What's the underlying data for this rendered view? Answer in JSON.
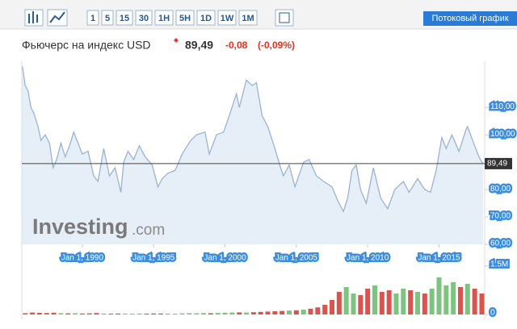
{
  "toolbar": {
    "intervals": [
      "1",
      "5",
      "15",
      "30",
      "1H",
      "5H",
      "1D",
      "1W",
      "1M"
    ],
    "streaming": "Потоковый график"
  },
  "header": {
    "name": "Фьючерс на индекс USD",
    "price": "89,49",
    "change": "-0,08",
    "change_pct": "(-0,09%)"
  },
  "chart_data": {
    "type": "area",
    "watermark": "Investing",
    "watermark_suffix": ".com",
    "x": [
      1985.8,
      1986.0,
      1986.2,
      1986.4,
      1986.6,
      1986.9,
      1987.1,
      1987.4,
      1987.7,
      1987.95,
      1988.2,
      1988.5,
      1988.8,
      1989.1,
      1989.4,
      1989.7,
      1990.0,
      1990.4,
      1990.8,
      1991.1,
      1991.5,
      1991.9,
      1992.3,
      1992.7,
      1992.9,
      1993.2,
      1993.6,
      1994.0,
      1994.4,
      1994.9,
      1995.3,
      1995.6,
      1996.0,
      1996.5,
      1997.0,
      1997.6,
      1998.0,
      1998.6,
      1998.9,
      1999.4,
      1999.9,
      2000.3,
      2000.8,
      2001.0,
      2001.5,
      2001.9,
      2002.2,
      2002.6,
      2003.0,
      2003.5,
      2003.9,
      2004.1,
      2004.5,
      2004.9,
      2005.5,
      2005.9,
      2006.4,
      2006.9,
      2007.5,
      2007.9,
      2008.3,
      2008.6,
      2008.9,
      2009.2,
      2009.5,
      2009.9,
      2010.4,
      2010.9,
      2011.4,
      2011.9,
      2012.5,
      2012.9,
      2013.5,
      2014.0,
      2014.4,
      2014.8,
      2015.2,
      2015.5,
      2015.9,
      2016.4,
      2016.9,
      2017.0,
      2017.5,
      2017.8,
      2018.0,
      2018.1
    ],
    "values": [
      125,
      118,
      116,
      110,
      108,
      103,
      98,
      100,
      97,
      88,
      91,
      97,
      92,
      96,
      101,
      97,
      93,
      94,
      85,
      83,
      95,
      85,
      88,
      79,
      90,
      94,
      91,
      96,
      92,
      89,
      81,
      84,
      86,
      87,
      93,
      98,
      100,
      101,
      93,
      100,
      101,
      107,
      115,
      110,
      120,
      118,
      119,
      107,
      103,
      95,
      88,
      85,
      89,
      81,
      90,
      91,
      85,
      83,
      81,
      76,
      72,
      77,
      87,
      89,
      80,
      75,
      88,
      77,
      73,
      80,
      83,
      79,
      84,
      80,
      79,
      87,
      99,
      95,
      100,
      94,
      102,
      103,
      96,
      92,
      90,
      89.49
    ],
    "color": "#9bb3d0",
    "fill": "#e6eef7",
    "xlim": [
      1985.76,
      2018.2
    ],
    "ylim": [
      60,
      125.7
    ],
    "xticks": [
      {
        "value": 1990,
        "label": "Jan 1, 1990"
      },
      {
        "value": 1995,
        "label": "Jan 1, 1995"
      },
      {
        "value": 2000,
        "label": "Jan 1, 2000"
      },
      {
        "value": 2005,
        "label": "Jan 1, 2005"
      },
      {
        "value": 2010,
        "label": "Jan 1, 2010"
      },
      {
        "value": 2015,
        "label": "Jan 1, 2015"
      }
    ],
    "yticks": [
      {
        "value": 60,
        "label": "60,00"
      },
      {
        "value": 70,
        "label": "70,00"
      },
      {
        "value": 80,
        "label": "80,00"
      },
      {
        "value": 100,
        "label": "100,00"
      },
      {
        "value": 110,
        "label": "110,00"
      }
    ],
    "price_line": {
      "value": 89.49,
      "label": "89,49"
    },
    "volume": {
      "x": [
        1986,
        1986.5,
        1987,
        1987.5,
        1988,
        1988.5,
        1989,
        1989.5,
        1990,
        1990.5,
        1991,
        1991.5,
        1992,
        1992.5,
        1993,
        1993.5,
        1994,
        1994.5,
        1995,
        1995.5,
        1996,
        1996.5,
        1997,
        1997.5,
        1998,
        1998.5,
        1999,
        1999.5,
        2000,
        2000.5,
        2001,
        2001.5,
        2002,
        2002.5,
        2003,
        2003.5,
        2004,
        2004.5,
        2005,
        2005.5,
        2006,
        2006.5,
        2007,
        2007.5,
        2008,
        2008.5,
        2009,
        2009.5,
        2010,
        2010.5,
        2011,
        2011.5,
        2012,
        2012.5,
        2013,
        2013.5,
        2014,
        2014.5,
        2015,
        2015.5,
        2016,
        2016.5,
        2017,
        2017.5,
        2018
      ],
      "values": [
        40000,
        60000,
        50000,
        45000,
        55000,
        40000,
        35000,
        40000,
        30000,
        35000,
        45000,
        30000,
        25000,
        30000,
        28000,
        25000,
        30000,
        27000,
        32000,
        30000,
        28000,
        25000,
        35000,
        40000,
        38000,
        45000,
        40000,
        50000,
        55000,
        60000,
        65000,
        60000,
        70000,
        80000,
        90000,
        100000,
        110000,
        120000,
        130000,
        150000,
        180000,
        220000,
        300000,
        450000,
        700000,
        850000,
        650000,
        600000,
        800000,
        900000,
        700000,
        750000,
        650000,
        800000,
        750000,
        700000,
        650000,
        800000,
        1150000,
        900000,
        1000000,
        850000,
        950000,
        800000,
        650000
      ],
      "up_color": "#7cc47f",
      "down_color": "#d9534f",
      "ylim": [
        0,
        1500000
      ],
      "yticks": [
        0,
        {
          "value": 1500000,
          "label": "1.5M"
        }
      ]
    }
  }
}
